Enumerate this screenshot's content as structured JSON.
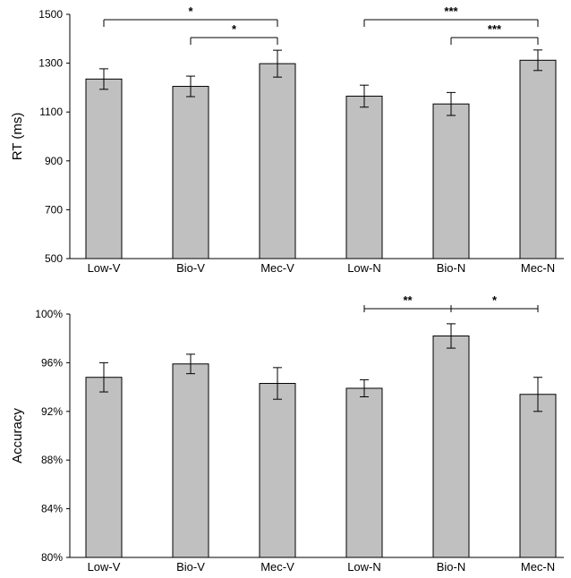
{
  "chart_data": [
    {
      "type": "bar",
      "categories": [
        "Low-V",
        "Bio-V",
        "Mec-V",
        "Low-N",
        "Bio-N",
        "Mec-N"
      ],
      "values": [
        1235,
        1205,
        1298,
        1165,
        1133,
        1312
      ],
      "errors": [
        42,
        42,
        55,
        45,
        47,
        42
      ],
      "ylabel": "RT (ms)",
      "ylim": [
        500,
        1500
      ],
      "yticks": [
        500,
        700,
        900,
        1100,
        1300,
        1500
      ],
      "ytick_labels": [
        "500",
        "700",
        "900",
        "1100",
        "1300",
        "1500"
      ],
      "significance": [
        {
          "from": 0,
          "to": 2,
          "label": "*",
          "level": 1
        },
        {
          "from": 1,
          "to": 2,
          "label": "*",
          "level": 0
        },
        {
          "from": 3,
          "to": 5,
          "label": "***",
          "level": 1
        },
        {
          "from": 4,
          "to": 5,
          "label": "***",
          "level": 0
        }
      ],
      "bar_color": "#c0c0c0"
    },
    {
      "type": "bar",
      "categories": [
        "Low-V",
        "Bio-V",
        "Mec-V",
        "Low-N",
        "Bio-N",
        "Mec-N"
      ],
      "values": [
        94.8,
        95.9,
        94.3,
        93.9,
        98.2,
        93.4
      ],
      "errors": [
        1.2,
        0.8,
        1.3,
        0.7,
        1.0,
        1.4
      ],
      "ylabel": "Accuracy",
      "ylim": [
        80,
        100
      ],
      "yticks": [
        80,
        84,
        88,
        92,
        96,
        100
      ],
      "ytick_labels": [
        "80%",
        "84%",
        "88%",
        "92%",
        "96%",
        "100%"
      ],
      "significance": [
        {
          "from": 3,
          "to": 4,
          "label": "**",
          "level": 0
        },
        {
          "from": 4,
          "to": 5,
          "label": "*",
          "level": 0
        }
      ],
      "bar_color": "#c0c0c0"
    }
  ]
}
